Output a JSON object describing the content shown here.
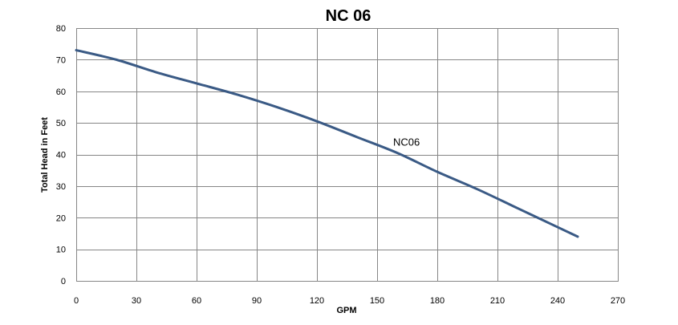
{
  "chart_data": {
    "type": "line",
    "title": "NC 06",
    "xlabel": "GPM",
    "ylabel": "Total Head in Feet",
    "xlim": [
      0,
      270
    ],
    "ylim": [
      0,
      80
    ],
    "x_ticks": [
      0,
      30,
      60,
      90,
      120,
      150,
      180,
      210,
      240,
      270
    ],
    "y_ticks": [
      0,
      10,
      20,
      30,
      40,
      50,
      60,
      70,
      80
    ],
    "x_tick_labels": [
      "0",
      "30",
      "60",
      "90",
      "120",
      "150",
      "180",
      "210",
      "240",
      "270"
    ],
    "y_tick_labels": [
      "0",
      "10",
      "20",
      "30",
      "40",
      "50",
      "60",
      "70",
      "80"
    ],
    "grid": true,
    "legend": "none",
    "series": [
      {
        "name": "NC06",
        "label_at": {
          "x": 158,
          "y": 42
        },
        "color": "#3a5a85",
        "points": [
          {
            "x": 0,
            "y": 73
          },
          {
            "x": 20,
            "y": 70
          },
          {
            "x": 40,
            "y": 66
          },
          {
            "x": 60,
            "y": 62.5
          },
          {
            "x": 80,
            "y": 59
          },
          {
            "x": 100,
            "y": 55
          },
          {
            "x": 120,
            "y": 50.5
          },
          {
            "x": 140,
            "y": 45.5
          },
          {
            "x": 160,
            "y": 40.5
          },
          {
            "x": 180,
            "y": 34.5
          },
          {
            "x": 200,
            "y": 29
          },
          {
            "x": 220,
            "y": 23
          },
          {
            "x": 240,
            "y": 17
          },
          {
            "x": 250,
            "y": 14
          }
        ]
      }
    ]
  }
}
